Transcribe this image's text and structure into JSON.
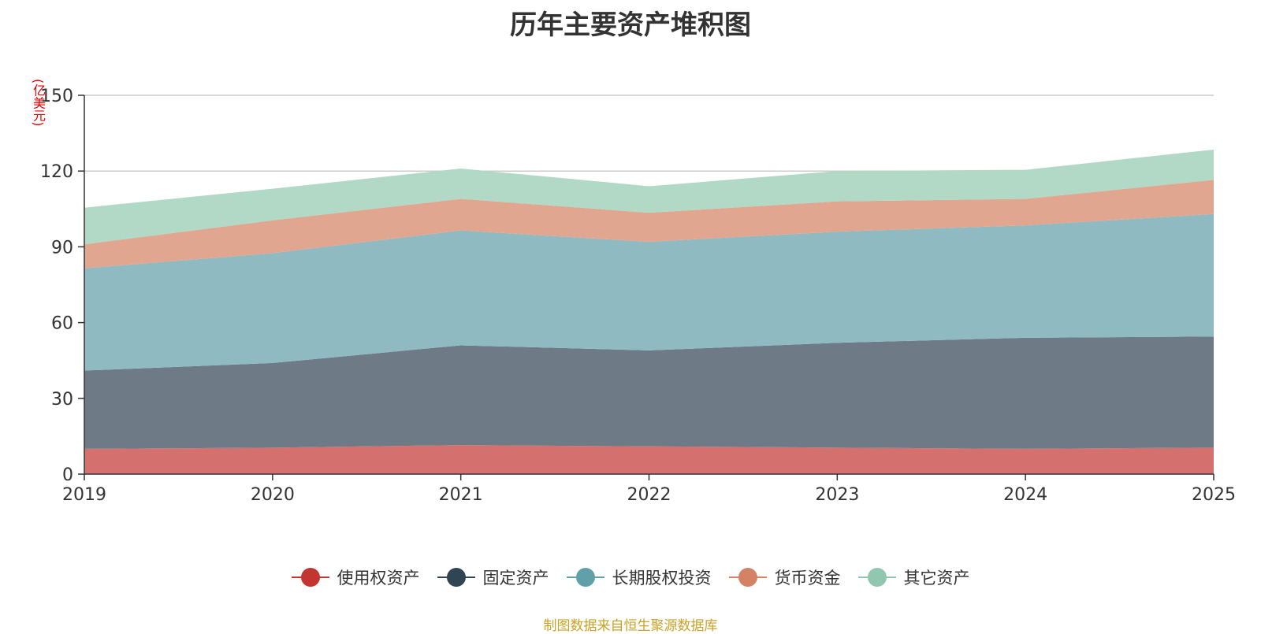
{
  "chart_data": {
    "type": "area",
    "stacked": true,
    "title": "历年主要资产堆积图",
    "unit_label": "(亿美元)",
    "x": [
      "2019",
      "2020",
      "2021",
      "2022",
      "2023",
      "2024",
      "2025"
    ],
    "ylim": [
      0,
      150
    ],
    "yticks": [
      0,
      30,
      60,
      90,
      120,
      150
    ],
    "grid": true,
    "legend_position": "bottom",
    "series": [
      {
        "name": "使用权资产",
        "color": "#c23531",
        "fill": "#d4706d",
        "values": [
          10,
          10.5,
          11.5,
          11,
          10.5,
          10,
          10.5
        ]
      },
      {
        "name": "固定资产",
        "color": "#2f4554",
        "fill": "#6e7b86",
        "values": [
          31,
          33.5,
          39.5,
          38,
          41.5,
          44,
          44
        ]
      },
      {
        "name": "长期股权投资",
        "color": "#61a0a8",
        "fill": "#90bac1",
        "values": [
          40.5,
          43.5,
          45.5,
          43,
          44,
          44.5,
          48.5
        ]
      },
      {
        "name": "货币资金",
        "color": "#d48265",
        "fill": "#e1a690",
        "values": [
          9.5,
          13,
          12.5,
          11.5,
          12,
          10.5,
          13.5
        ]
      },
      {
        "name": "其它资产",
        "color": "#91c7ae",
        "fill": "#b2d8c6",
        "values": [
          14.5,
          12.5,
          12,
          10.5,
          12,
          11.5,
          12
        ]
      }
    ],
    "source": "制图数据来自恒生聚源数据库"
  }
}
